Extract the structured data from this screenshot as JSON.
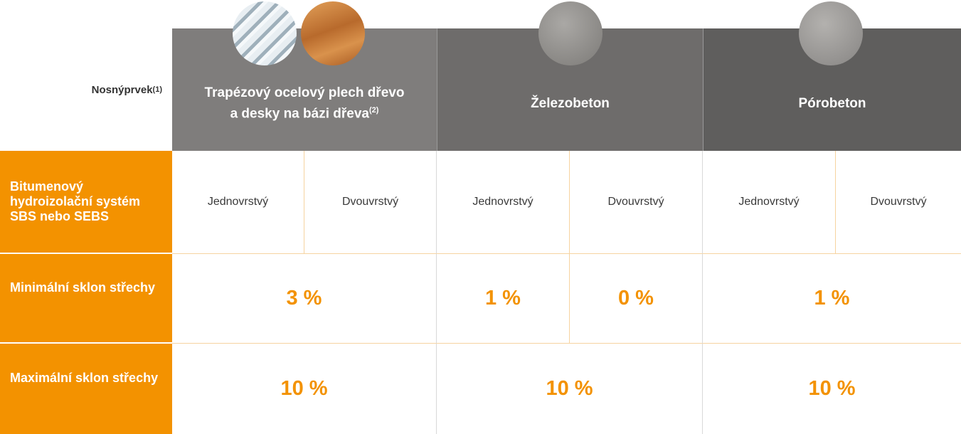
{
  "header": {
    "label": "Nosnýprvek",
    "label_sup": "(1)",
    "columns": [
      {
        "title": "Trapézový ocelový plech dřevo a desky na bázi dřeva",
        "sup": "(2)"
      },
      {
        "title": "Železobeton"
      },
      {
        "title": "Pórobeton"
      }
    ]
  },
  "rows": [
    {
      "label": "Bitumenový hydroizolační systém SBS nebo SEBS",
      "cells": [
        "Jednovrstvý",
        "Dvouvrstvý",
        "Jednovrstvý",
        "Dvouvrstvý",
        "Jednovrstvý",
        "Dvouvrstvý"
      ]
    },
    {
      "label": "Minimální sklon střechy",
      "cells": [
        "3 %",
        "1 %",
        "0 %",
        "1 %"
      ]
    },
    {
      "label": "Maximální sklon střechy",
      "cells": [
        "10 %",
        "10 %",
        "10 %"
      ]
    }
  ]
}
